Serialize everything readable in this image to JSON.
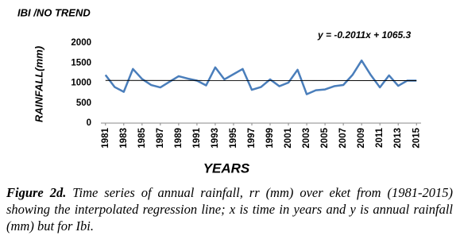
{
  "chart_data": {
    "type": "line",
    "title": "IBI /NO TREND",
    "y_label": "RAINFALL(mm)",
    "x_label": "YEARS",
    "x": [
      1981,
      1982,
      1983,
      1984,
      1985,
      1986,
      1987,
      1988,
      1989,
      1990,
      1991,
      1992,
      1993,
      1994,
      1995,
      1996,
      1997,
      1998,
      1999,
      2000,
      2001,
      2002,
      2003,
      2004,
      2005,
      2006,
      2007,
      2008,
      2009,
      2010,
      2011,
      2012,
      2013,
      2014,
      2015
    ],
    "values": [
      1200,
      900,
      780,
      1350,
      1100,
      950,
      890,
      1030,
      1170,
      1110,
      1060,
      940,
      1390,
      1090,
      1220,
      1350,
      830,
      900,
      1090,
      920,
      1010,
      1330,
      720,
      820,
      840,
      920,
      950,
      1200,
      1560,
      1200,
      890,
      1190,
      930,
      1060,
      1060
    ],
    "color": "#4a7ebb",
    "trend": {
      "equation": "y = -0.2011x + 1065.3",
      "slope": -0.2011,
      "intercept": 1065.3,
      "color": "#000000"
    },
    "xlim": [
      1980.5,
      2015.5
    ],
    "xticks": [
      1981,
      1983,
      1985,
      1987,
      1989,
      1991,
      1993,
      1995,
      1997,
      1999,
      2001,
      2003,
      2005,
      2007,
      2009,
      2011,
      2013,
      2015
    ],
    "ylim": [
      0,
      2000
    ],
    "yticks": [
      0,
      500,
      1000,
      1500,
      2000
    ],
    "grid": false
  },
  "caption": {
    "label": "Figure 2d.",
    "text": "Time series of annual rainfall, rr (mm) over eket from (1981-2015) showing the interpolated regression line; x is time in years and y is annual rainfall (mm) but for Ibi."
  }
}
